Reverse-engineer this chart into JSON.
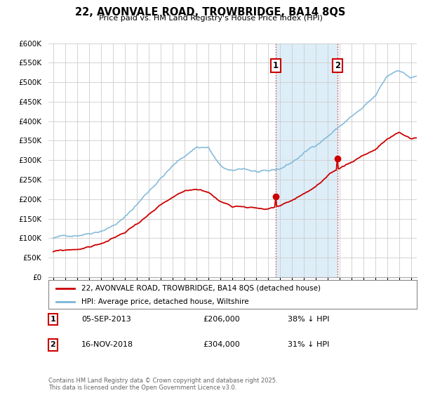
{
  "title": "22, AVONVALE ROAD, TROWBRIDGE, BA14 8QS",
  "subtitle": "Price paid vs. HM Land Registry's House Price Index (HPI)",
  "ylim": [
    0,
    600000
  ],
  "yticks": [
    0,
    50000,
    100000,
    150000,
    200000,
    250000,
    300000,
    350000,
    400000,
    450000,
    500000,
    550000,
    600000
  ],
  "legend_line1": "22, AVONVALE ROAD, TROWBRIDGE, BA14 8QS (detached house)",
  "legend_line2": "HPI: Average price, detached house, Wiltshire",
  "sale1_date": "05-SEP-2013",
  "sale1_price": "£206,000",
  "sale1_hpi": "38% ↓ HPI",
  "sale2_date": "16-NOV-2018",
  "sale2_price": "£304,000",
  "sale2_hpi": "31% ↓ HPI",
  "footer": "Contains HM Land Registry data © Crown copyright and database right 2025.\nThis data is licensed under the Open Government Licence v3.0.",
  "hpi_color": "#7ab5d8",
  "sale_color": "#cc0000",
  "bg_shade_color": "#ddeef8",
  "sale1_year": 2013.67,
  "sale2_year": 2018.87,
  "sale1_price_val": 206000,
  "sale2_price_val": 304000,
  "hpi_seed": 42,
  "sale_seed": 99
}
